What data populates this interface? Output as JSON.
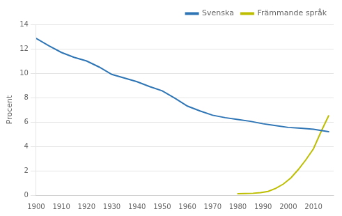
{
  "chart_data": {
    "type": "line",
    "ylabel": "Procent",
    "series": [
      {
        "name": "Svenska",
        "color": "#2E75B6",
        "x": [
          1900,
          1905,
          1910,
          1915,
          1920,
          1925,
          1930,
          1935,
          1940,
          1945,
          1950,
          1955,
          1960,
          1965,
          1970,
          1975,
          1980,
          1985,
          1990,
          1995,
          2000,
          2005,
          2010,
          2013,
          2016
        ],
        "values": [
          12.85,
          12.25,
          11.7,
          11.3,
          11.0,
          10.5,
          9.9,
          9.6,
          9.3,
          8.9,
          8.55,
          7.95,
          7.3,
          6.9,
          6.55,
          6.35,
          6.2,
          6.05,
          5.85,
          5.7,
          5.55,
          5.48,
          5.4,
          5.3,
          5.2
        ]
      },
      {
        "name": "Främmande språk",
        "color": "#BEBE00",
        "x": [
          1980,
          1983,
          1986,
          1989,
          1992,
          1995,
          1998,
          2001,
          2004,
          2007,
          2010,
          2013,
          2016
        ],
        "values": [
          0.12,
          0.13,
          0.15,
          0.2,
          0.3,
          0.55,
          0.9,
          1.4,
          2.1,
          2.9,
          3.8,
          5.2,
          6.5
        ]
      }
    ],
    "xlim": [
      1900,
      2018
    ],
    "xticks": [
      1900,
      1910,
      1920,
      1930,
      1940,
      1950,
      1960,
      1970,
      1980,
      1990,
      2000,
      2010
    ],
    "ylim": [
      0,
      14
    ],
    "yticks": [
      0,
      2,
      4,
      6,
      8,
      10,
      12,
      14
    ],
    "grid": "y",
    "legend": "upper right"
  }
}
